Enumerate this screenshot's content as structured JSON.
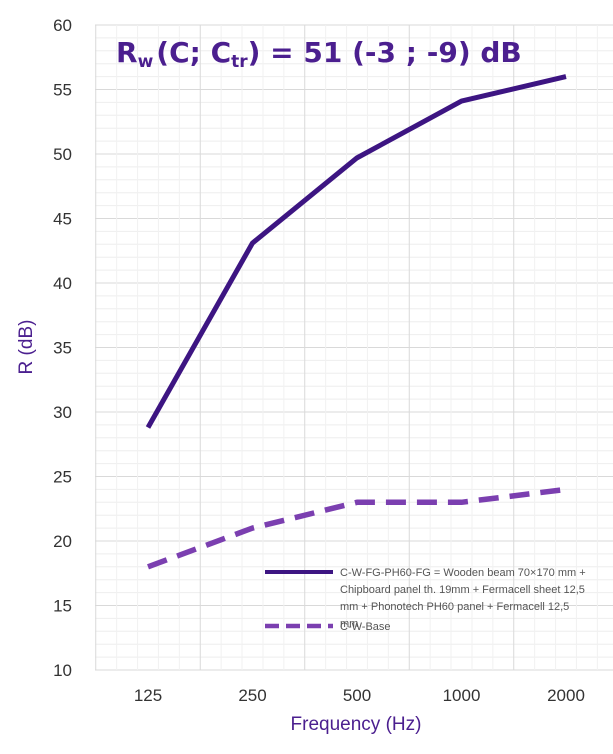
{
  "chart_data": {
    "type": "line",
    "title_parts": {
      "r": "R",
      "w": "w",
      "open": "(C; C",
      "tr": "tr",
      "mid": ") = 51 (",
      "c1": "-3 ; -9",
      "close": ") dB"
    },
    "xlabel": "Frequency (Hz)",
    "ylabel": "R (dB)",
    "categories": [
      "125",
      "250",
      "500",
      "1000",
      "2000"
    ],
    "ylim": [
      10,
      60
    ],
    "yticks": [
      10,
      15,
      20,
      25,
      30,
      35,
      40,
      45,
      50,
      55,
      60
    ],
    "grid": true,
    "legend_position": "bottom-right",
    "series": [
      {
        "name": "C-W-FG-PH60-FG = Wooden beam 70×170 mm + Chipboard panel th. 19mm + Fermacell sheet 12,5 mm + Phonotech PH60 panel + Fermacell 12,5 mm",
        "name_lines": [
          "C-W-FG-PH60-FG = Wooden beam 70×170 mm +",
          "Chipboard panel th. 19mm + Fermacell sheet 12,5",
          "mm + Phonotech PH60 panel + Fermacell 12,5",
          "mm"
        ],
        "values": [
          28.8,
          43.1,
          49.7,
          54.1,
          56.0
        ],
        "color": "#3d1582",
        "style": "solid"
      },
      {
        "name": "C-W-Base",
        "name_lines": [
          "C-W-Base"
        ],
        "values": [
          18.0,
          21.0,
          23.0,
          23.0,
          24.0
        ],
        "color": "#7b3fb0",
        "style": "dashed"
      }
    ]
  }
}
